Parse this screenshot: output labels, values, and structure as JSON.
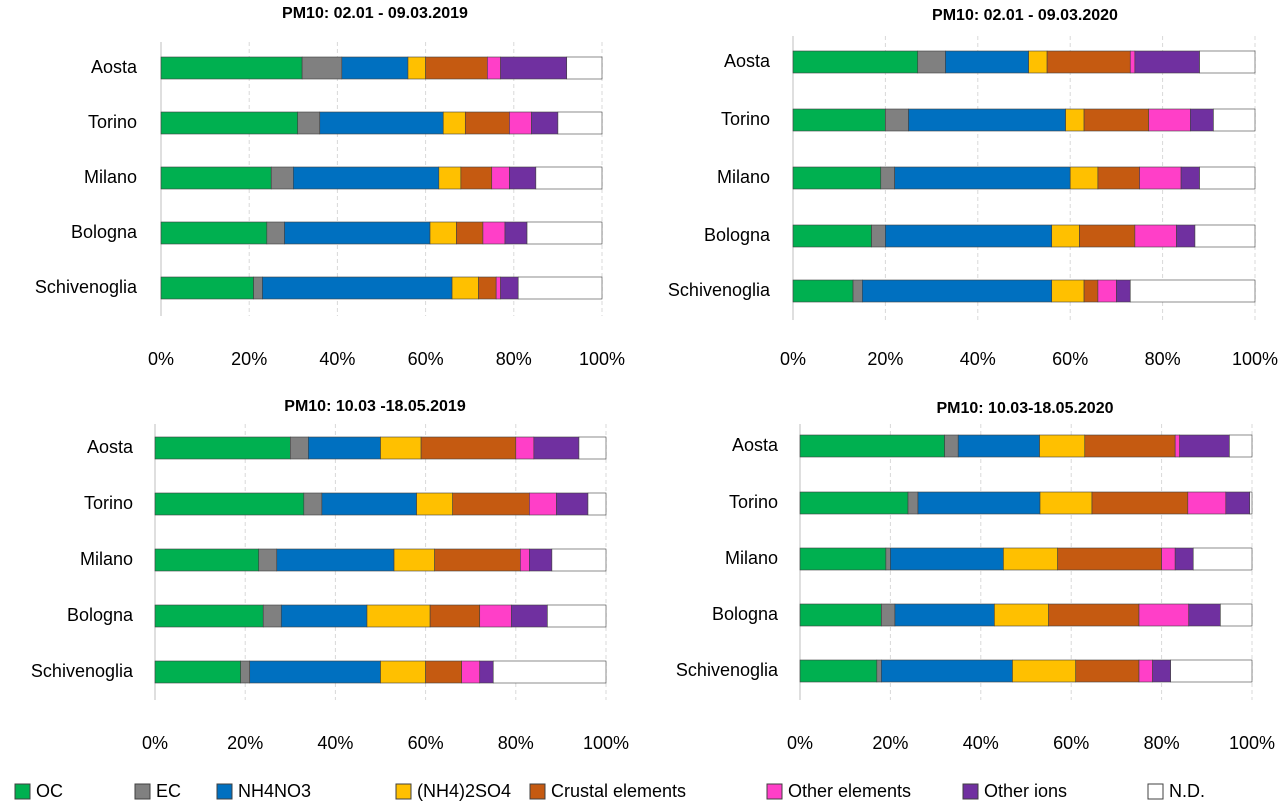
{
  "chart_data": [
    {
      "type": "bar",
      "orientation": "horizontal",
      "stacked": true,
      "title": "PM10: 02.01 - 09.03.2019",
      "categories": [
        "Aosta",
        "Torino",
        "Milano",
        "Bologna",
        "Schivenoglia"
      ],
      "series": [
        {
          "name": "OC",
          "color": "#00b050",
          "values": [
            32,
            31,
            25,
            24,
            21
          ]
        },
        {
          "name": "EC",
          "color": "#808080",
          "values": [
            9,
            5,
            5,
            4,
            2
          ]
        },
        {
          "name": "NH4NO3",
          "color": "#0070c0",
          "values": [
            15,
            28,
            33,
            33,
            43
          ]
        },
        {
          "name": "(NH4)2SO4",
          "color": "#ffc000",
          "values": [
            4,
            5,
            5,
            6,
            6
          ]
        },
        {
          "name": "Crustal elements",
          "color": "#c55a11",
          "values": [
            14,
            10,
            7,
            6,
            4
          ]
        },
        {
          "name": "Other elements",
          "color": "#ff3fc8",
          "values": [
            3,
            5,
            4,
            5,
            1
          ]
        },
        {
          "name": "Other ions",
          "color": "#7030a0",
          "values": [
            15,
            6,
            6,
            5,
            4
          ]
        },
        {
          "name": "N.D.",
          "color": "#ffffff",
          "values": [
            8,
            10,
            15,
            17,
            19
          ]
        }
      ],
      "xlim": [
        0,
        100
      ],
      "xticks": [
        {
          "value": 0,
          "label": "0%"
        },
        {
          "value": 20,
          "label": "20%"
        },
        {
          "value": 40,
          "label": "40%"
        },
        {
          "value": 60,
          "label": "60%"
        },
        {
          "value": 80,
          "label": "80%"
        },
        {
          "value": 100,
          "label": "100%"
        }
      ],
      "grid": true
    },
    {
      "type": "bar",
      "orientation": "horizontal",
      "stacked": true,
      "title": "PM10: 02.01 - 09.03.2020",
      "categories": [
        "Aosta",
        "Torino",
        "Milano",
        "Bologna",
        "Schivenoglia"
      ],
      "series": [
        {
          "color": "#00b050",
          "values": [
            27,
            20,
            19,
            17,
            13
          ]
        },
        {
          "color": "#808080",
          "values": [
            6,
            5,
            3,
            3,
            2
          ]
        },
        {
          "color": "#0070c0",
          "values": [
            18,
            34,
            38,
            36,
            41
          ]
        },
        {
          "color": "#ffc000",
          "values": [
            4,
            4,
            6,
            6,
            7
          ]
        },
        {
          "color": "#c55a11",
          "values": [
            18,
            14,
            9,
            12,
            3
          ]
        },
        {
          "color": "#ff3fc8",
          "values": [
            1,
            9,
            9,
            9,
            4
          ]
        },
        {
          "color": "#7030a0",
          "values": [
            14,
            5,
            4,
            4,
            3
          ]
        },
        {
          "color": "#ffffff",
          "values": [
            12,
            9,
            12,
            13,
            27
          ]
        }
      ],
      "xlim": [
        0,
        100
      ],
      "xticks": [
        {
          "value": 0,
          "label": "0%"
        },
        {
          "value": 20,
          "label": "20%"
        },
        {
          "value": 40,
          "label": "40%"
        },
        {
          "value": 60,
          "label": "60%"
        },
        {
          "value": 80,
          "label": "80%"
        },
        {
          "value": 100,
          "label": "100%"
        }
      ],
      "grid": true
    },
    {
      "type": "bar",
      "orientation": "horizontal",
      "stacked": true,
      "title": "PM10: 10.03 -18.05.2019",
      "categories": [
        "Aosta",
        "Torino",
        "Milano",
        "Bologna",
        "Schivenoglia"
      ],
      "series": [
        {
          "color": "#00b050",
          "values": [
            30,
            33,
            23,
            24,
            19
          ]
        },
        {
          "color": "#808080",
          "values": [
            4,
            4,
            4,
            4,
            2
          ]
        },
        {
          "color": "#0070c0",
          "values": [
            16,
            21,
            26,
            19,
            29
          ]
        },
        {
          "color": "#ffc000",
          "values": [
            9,
            8,
            9,
            14,
            10
          ]
        },
        {
          "color": "#c55a11",
          "values": [
            21,
            17,
            19,
            11,
            8
          ]
        },
        {
          "color": "#ff3fc8",
          "values": [
            4,
            6,
            2,
            7,
            4
          ]
        },
        {
          "color": "#7030a0",
          "values": [
            10,
            7,
            5,
            8,
            3
          ]
        },
        {
          "color": "#ffffff",
          "values": [
            6,
            4,
            12,
            13,
            25
          ]
        }
      ],
      "xlim": [
        0,
        100
      ],
      "xticks": [
        {
          "value": 0,
          "label": "0%"
        },
        {
          "value": 20,
          "label": "20%"
        },
        {
          "value": 40,
          "label": "40%"
        },
        {
          "value": 60,
          "label": "60%"
        },
        {
          "value": 80,
          "label": "80%"
        },
        {
          "value": 100,
          "label": "100%"
        }
      ],
      "grid": true
    },
    {
      "type": "bar",
      "orientation": "horizontal",
      "stacked": true,
      "title": "PM10: 10.03-18.05.2020",
      "categories": [
        "Aosta",
        "Torino",
        "Milano",
        "Bologna",
        "Schivenoglia"
      ],
      "series": [
        {
          "color": "#00b050",
          "values": [
            32,
            23.9,
            19,
            18,
            17
          ]
        },
        {
          "color": "#808080",
          "values": [
            3,
            2.2,
            1,
            3,
            1
          ]
        },
        {
          "color": "#0070c0",
          "values": [
            18,
            27,
            25,
            22,
            29
          ]
        },
        {
          "color": "#ffc000",
          "values": [
            10,
            11.5,
            12,
            12,
            14
          ]
        },
        {
          "color": "#c55a11",
          "values": [
            20,
            21.2,
            23,
            20,
            14
          ]
        },
        {
          "color": "#ff3fc8",
          "values": [
            1,
            8.4,
            3,
            11,
            3
          ]
        },
        {
          "color": "#7030a0",
          "values": [
            11,
            5.3,
            4,
            7,
            4
          ]
        },
        {
          "color": "#ffffff",
          "values": [
            5,
            0.5,
            13,
            7,
            18
          ]
        }
      ],
      "xlim": [
        0,
        100
      ],
      "xticks": [
        {
          "value": 0,
          "label": "0%"
        },
        {
          "value": 20,
          "label": "20%"
        },
        {
          "value": 40,
          "label": "40%"
        },
        {
          "value": 60,
          "label": "60%"
        },
        {
          "value": 80,
          "label": "80%"
        },
        {
          "value": 100,
          "label": "100%"
        }
      ],
      "grid": true
    }
  ]
}
